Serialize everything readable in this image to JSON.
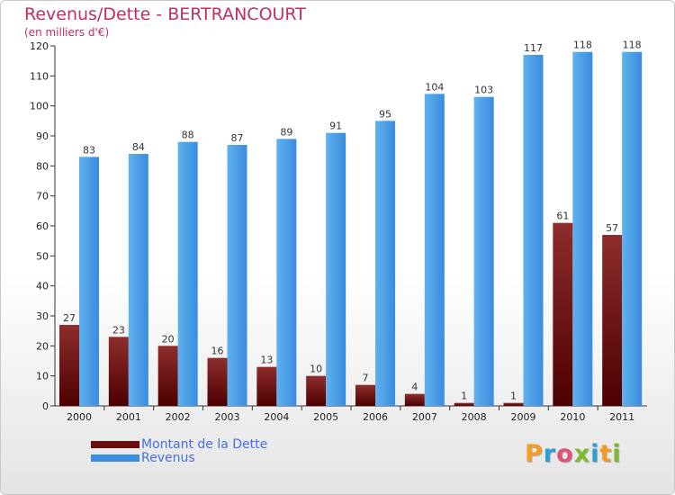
{
  "chart_data": {
    "type": "bar",
    "title": "Revenus/Dette - BERTRANCOURT",
    "subtitle": "(en milliers d'€)",
    "categories": [
      "2000",
      "2001",
      "2002",
      "2003",
      "2004",
      "2005",
      "2006",
      "2007",
      "2008",
      "2009",
      "2010",
      "2011"
    ],
    "series": [
      {
        "name": "Montant de la Dette",
        "color": "#6a0d0d",
        "values": [
          27,
          23,
          20,
          16,
          13,
          10,
          7,
          4,
          1,
          1,
          61,
          57
        ]
      },
      {
        "name": "Revenus",
        "color": "#3c8fe0",
        "values": [
          83,
          84,
          88,
          87,
          89,
          91,
          95,
          104,
          103,
          117,
          118,
          118
        ]
      }
    ],
    "ylim": [
      0,
      120
    ],
    "yticks": [
      0,
      10,
      20,
      30,
      40,
      50,
      60,
      70,
      80,
      90,
      100,
      110,
      120
    ],
    "grid": false,
    "legend_position": "bottom-left"
  },
  "logo": {
    "text": "Proxiti",
    "colors": [
      "#f59a23",
      "#2a9fd6",
      "#e0507a",
      "#7dbb2c",
      "#2a9fd6",
      "#f59a23",
      "#7dbb2c"
    ]
  }
}
